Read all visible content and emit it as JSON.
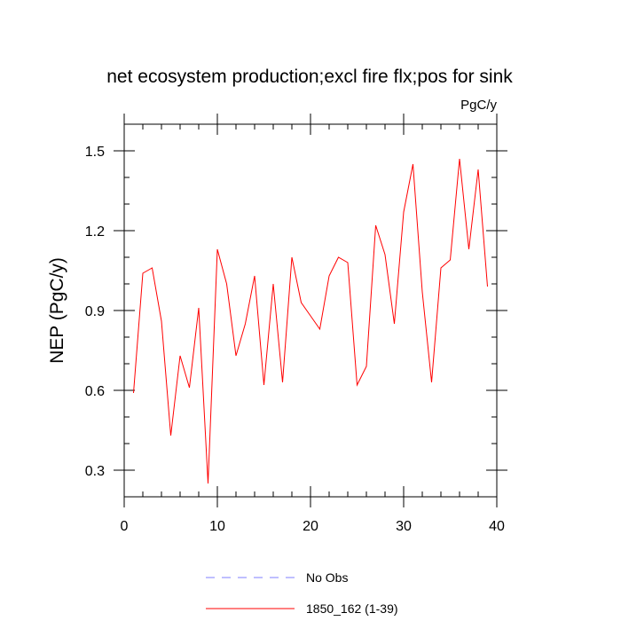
{
  "chart_data": {
    "type": "line",
    "title": "net ecosystem production;excl fire flx;pos for sink",
    "units_label": "PgC/y",
    "ylabel": "NEP  (PgC/y)",
    "xlabel": "",
    "xlim": [
      0,
      40
    ],
    "ylim": [
      0.2,
      1.6
    ],
    "x_ticks": [
      0,
      10,
      20,
      30,
      40
    ],
    "y_ticks": [
      0.3,
      0.6,
      0.9,
      1.2,
      1.5
    ],
    "x_tick_labels": [
      "0",
      "10",
      "20",
      "30",
      "40"
    ],
    "y_tick_labels": [
      "0.3",
      "0.6",
      "0.9",
      "1.2",
      "1.5"
    ],
    "grid": false,
    "legend_position": "bottom",
    "series": [
      {
        "name": "1850_162 (1-39)",
        "color": "#ff0000",
        "style": "solid",
        "x": [
          1,
          2,
          3,
          4,
          5,
          6,
          7,
          8,
          9,
          10,
          11,
          12,
          13,
          14,
          15,
          16,
          17,
          18,
          19,
          20,
          21,
          22,
          23,
          24,
          25,
          26,
          27,
          28,
          29,
          30,
          31,
          32,
          33,
          34,
          35,
          36,
          37,
          38,
          39
        ],
        "values": [
          0.59,
          1.04,
          1.06,
          0.86,
          0.43,
          0.73,
          0.61,
          0.91,
          0.25,
          1.13,
          1.0,
          0.73,
          0.85,
          1.03,
          0.62,
          1.0,
          0.63,
          1.1,
          0.93,
          0.88,
          0.83,
          1.03,
          1.1,
          1.08,
          0.62,
          0.69,
          1.22,
          1.11,
          0.85,
          1.27,
          1.45,
          0.97,
          0.63,
          1.06,
          1.09,
          1.47,
          1.13,
          1.43,
          0.99
        ]
      }
    ],
    "legend": [
      {
        "label": "No Obs",
        "color": "#7f7fff",
        "style": "dashed"
      },
      {
        "label": "1850_162 (1-39)",
        "color": "#ff0000",
        "style": "solid"
      }
    ]
  }
}
